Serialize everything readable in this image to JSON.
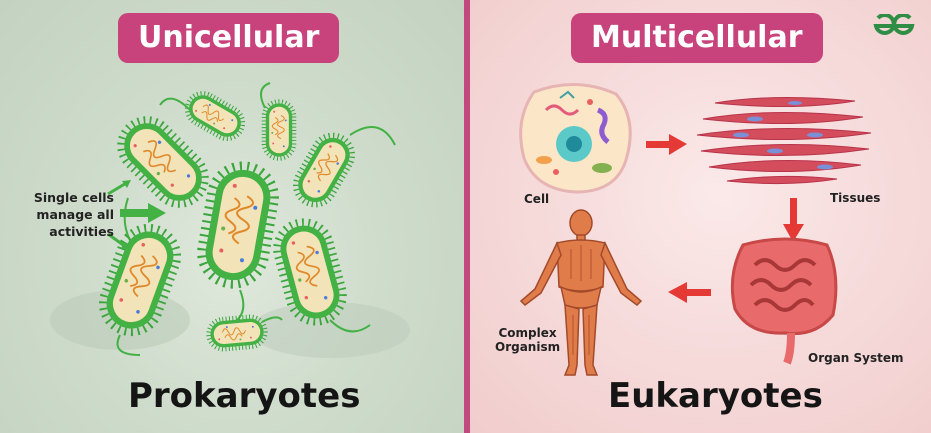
{
  "left": {
    "header": "Unicellular",
    "note_lines": [
      "Single cells",
      "manage all",
      "activities"
    ],
    "bottom_title": "Prokaryotes"
  },
  "right": {
    "header": "Multicellular",
    "labels": {
      "cell": "Cell",
      "tissues": "Tissues",
      "organ_system": "Organ System",
      "organism_line1": "Complex",
      "organism_line2": "Organism"
    },
    "bottom_title": "Eukaryotes"
  },
  "colors": {
    "accent": "#c8437b",
    "cell_green": "#43b144",
    "arrow_red": "#e53935",
    "logo_green": "#2f8d46"
  },
  "icons": [
    "geeksforgeeks-logo-icon",
    "bacteria-icon",
    "animal-cell-icon",
    "muscle-tissue-icon",
    "intestine-icon",
    "human-body-icon"
  ]
}
